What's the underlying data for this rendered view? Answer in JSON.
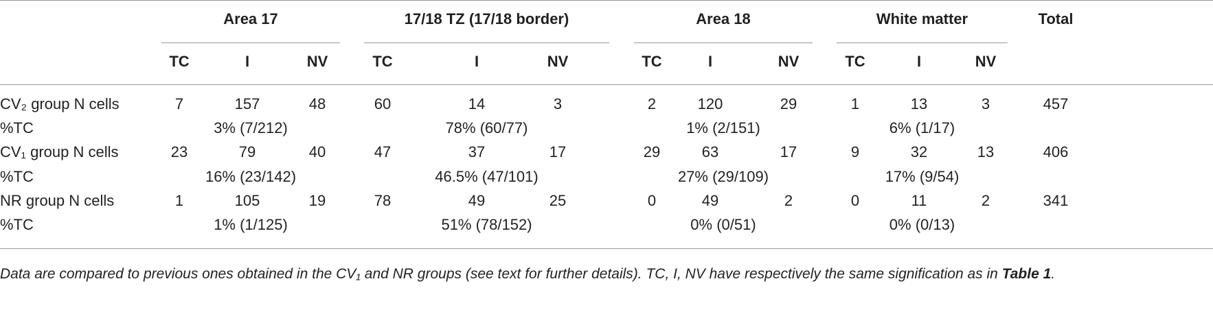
{
  "table": {
    "groups": [
      "Area 17",
      "17/18 TZ (17/18 border)",
      "Area 18",
      "White matter"
    ],
    "total_header": "Total",
    "subheaders": [
      [
        "TC",
        "I",
        "NV"
      ],
      [
        "TC",
        "I",
        "NV"
      ],
      [
        "TC",
        "I",
        "NV"
      ],
      [
        "TC",
        "I",
        "NV"
      ]
    ],
    "rows": [
      {
        "label": "CV₂ group N cells",
        "cells": [
          7,
          157,
          48,
          60,
          14,
          3,
          2,
          120,
          29,
          1,
          13,
          3
        ],
        "total": 457
      },
      {
        "label": "%TC",
        "spans": [
          "3% (7/212)",
          "78% (60/77)",
          "1% (2/151)",
          "6% (1/17)"
        ]
      },
      {
        "label": "CV₁ group N cells",
        "cells": [
          23,
          79,
          40,
          47,
          37,
          17,
          29,
          63,
          17,
          9,
          32,
          13
        ],
        "total": 406
      },
      {
        "label": "%TC",
        "spans": [
          "16% (23/142)",
          "46.5% (47/101)",
          "27% (29/109)",
          "17% (9/54)"
        ]
      },
      {
        "label": "NR group N cells",
        "cells": [
          1,
          105,
          19,
          78,
          49,
          25,
          0,
          49,
          2,
          0,
          11,
          2
        ],
        "total": 341
      },
      {
        "label": "%TC",
        "spans": [
          "1% (1/125)",
          "51% (78/152)",
          "0% (0/51)",
          "0% (0/13)"
        ]
      }
    ]
  },
  "footnote": {
    "text": "Data are compared to previous ones obtained in the CV₁ and NR groups (see text for further details). TC, I, NV have respectively the same signification as in ",
    "ref": "Table 1",
    "end": "."
  }
}
